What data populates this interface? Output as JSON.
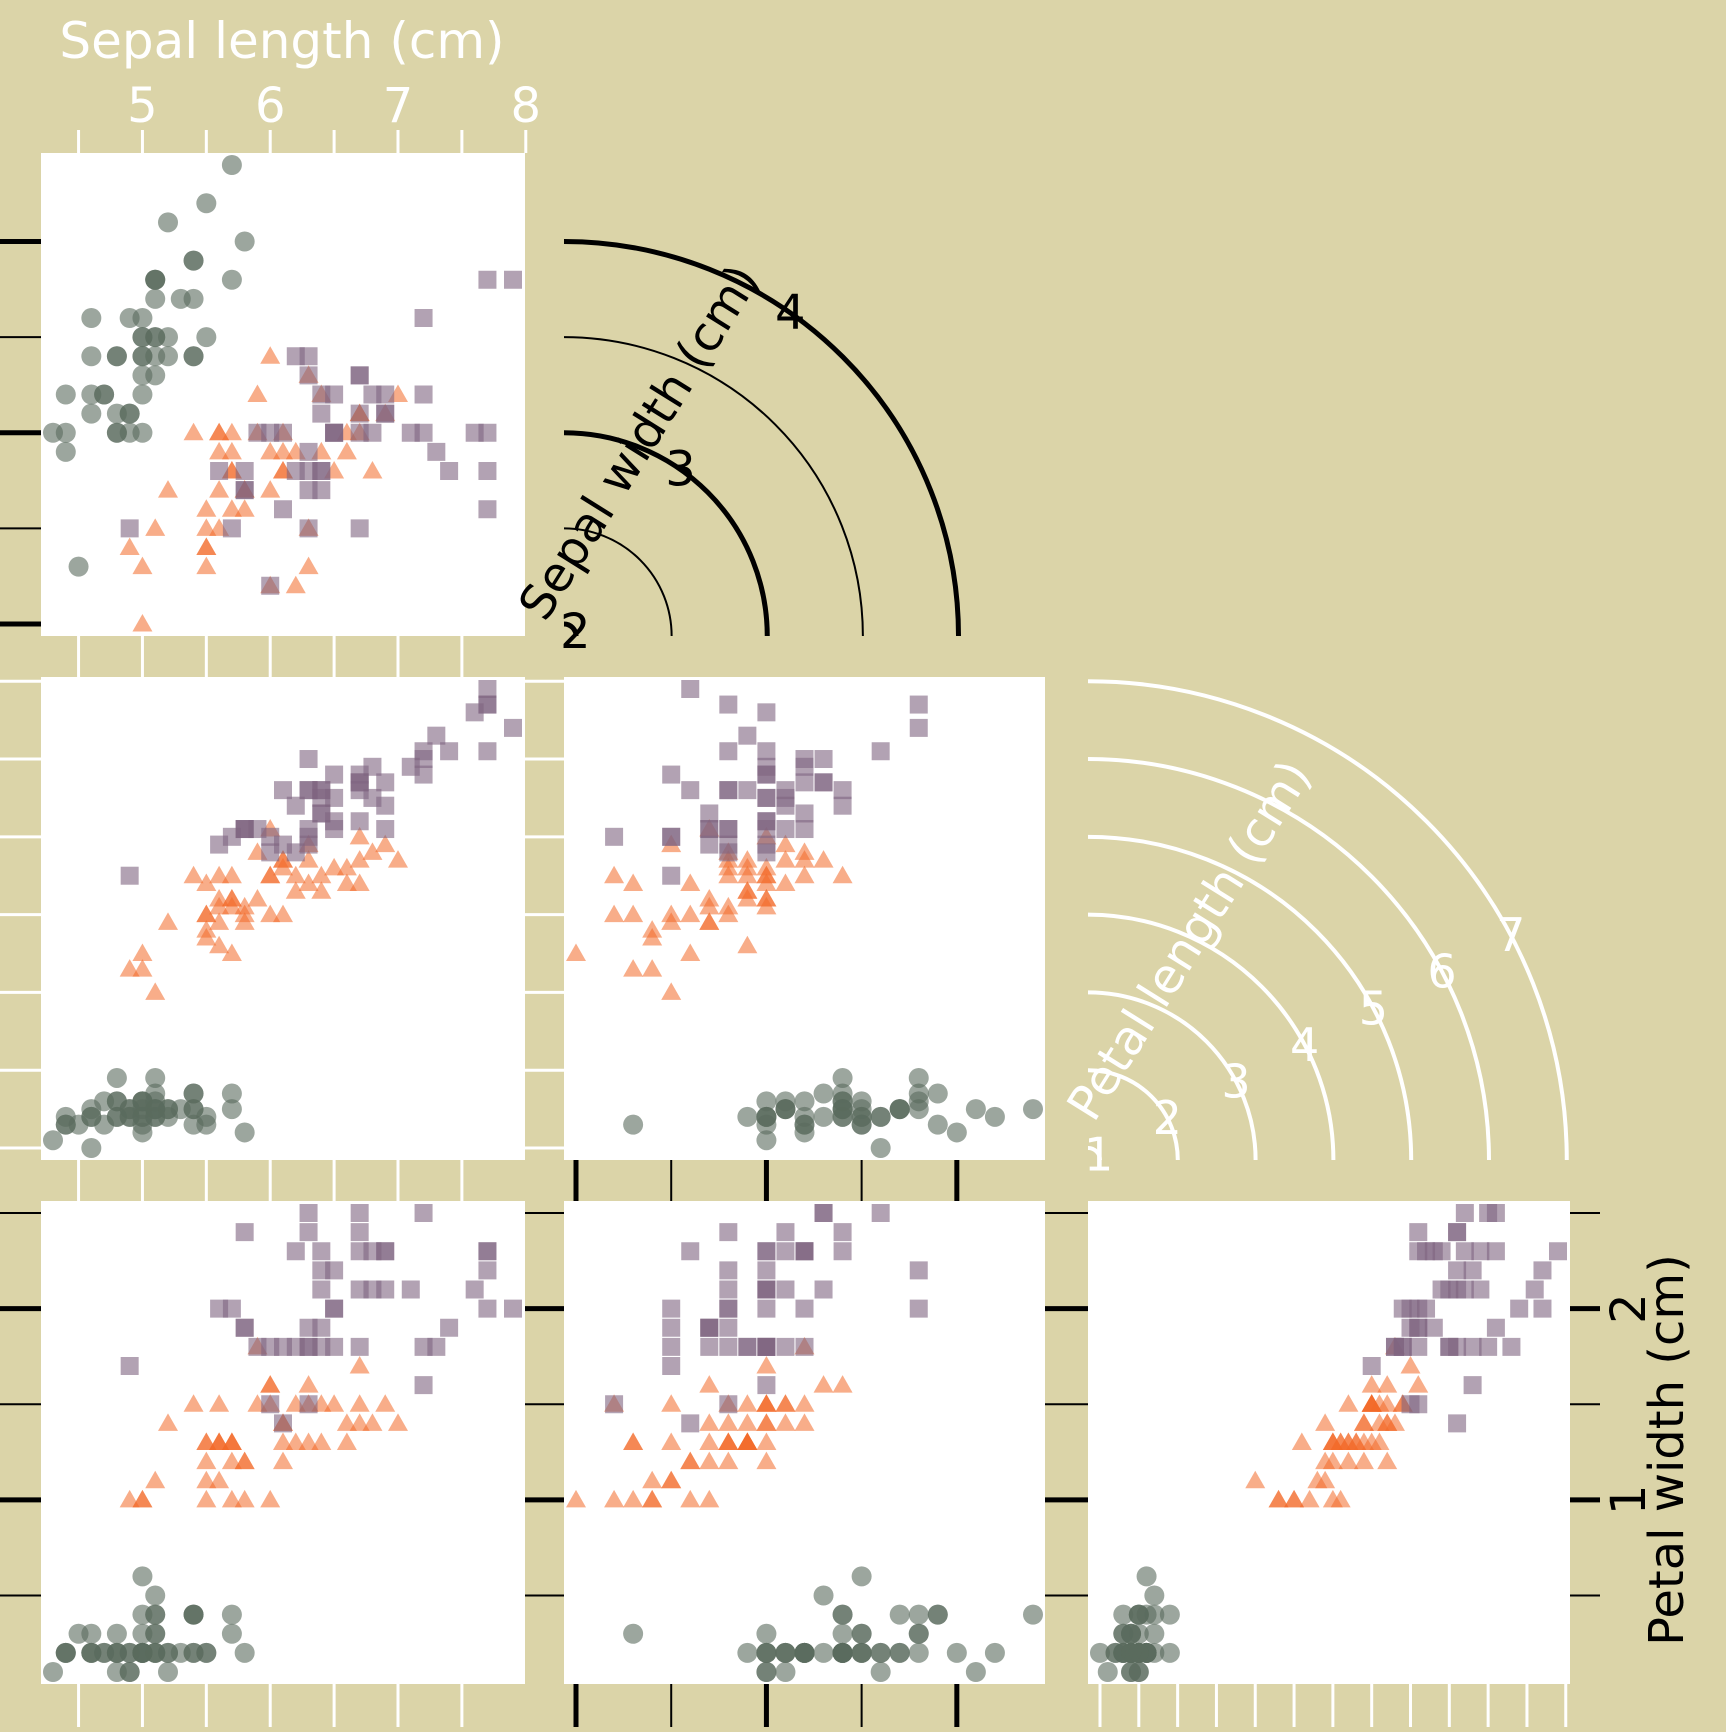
{
  "chart_data": {
    "type": "scatter",
    "variables": [
      {
        "key": "sl",
        "label": "Sepal length (cm)",
        "ticks": [
          "5",
          "6",
          "7",
          "8"
        ]
      },
      {
        "key": "sw",
        "label": "Sepal width (cm)",
        "ticks": [
          "2",
          "3",
          "4"
        ]
      },
      {
        "key": "pl",
        "label": "Petal length (cm)",
        "ticks": [
          "1",
          "2",
          "3",
          "4",
          "5",
          "6",
          "7"
        ]
      },
      {
        "key": "pw",
        "label": "Petal width (cm)",
        "ticks": [
          "1",
          "2"
        ]
      }
    ],
    "ranges": {
      "sl": [
        4.3,
        7.9
      ],
      "sw": [
        2.0,
        4.4
      ],
      "pl": [
        1.0,
        6.9
      ],
      "pw": [
        0.1,
        2.5
      ]
    },
    "panels": [
      {
        "x": "sl",
        "y": "sw"
      },
      {
        "x": "sl",
        "y": "pl"
      },
      {
        "x": "sw",
        "y": "pl"
      },
      {
        "x": "sl",
        "y": "pw"
      },
      {
        "x": "sw",
        "y": "pw"
      },
      {
        "x": "pl",
        "y": "pw"
      }
    ],
    "series": [
      {
        "shape": "circle",
        "color": "#5a6a5e",
        "points": [
          [
            5.1,
            3.5,
            1.4,
            0.2
          ],
          [
            4.9,
            3.0,
            1.4,
            0.2
          ],
          [
            4.7,
            3.2,
            1.3,
            0.2
          ],
          [
            4.6,
            3.1,
            1.5,
            0.2
          ],
          [
            5.0,
            3.6,
            1.4,
            0.2
          ],
          [
            5.4,
            3.9,
            1.7,
            0.4
          ],
          [
            4.6,
            3.4,
            1.4,
            0.3
          ],
          [
            5.0,
            3.4,
            1.5,
            0.2
          ],
          [
            4.4,
            2.9,
            1.4,
            0.2
          ],
          [
            4.9,
            3.1,
            1.5,
            0.1
          ],
          [
            5.4,
            3.7,
            1.5,
            0.2
          ],
          [
            4.8,
            3.4,
            1.6,
            0.2
          ],
          [
            4.8,
            3.0,
            1.4,
            0.1
          ],
          [
            4.3,
            3.0,
            1.1,
            0.1
          ],
          [
            5.8,
            4.0,
            1.2,
            0.2
          ],
          [
            5.7,
            4.4,
            1.5,
            0.4
          ],
          [
            5.4,
            3.9,
            1.3,
            0.4
          ],
          [
            5.1,
            3.5,
            1.4,
            0.3
          ],
          [
            5.7,
            3.8,
            1.7,
            0.3
          ],
          [
            5.1,
            3.8,
            1.5,
            0.3
          ],
          [
            5.4,
            3.4,
            1.7,
            0.2
          ],
          [
            5.1,
            3.7,
            1.5,
            0.4
          ],
          [
            4.6,
            3.6,
            1.0,
            0.2
          ],
          [
            5.1,
            3.3,
            1.7,
            0.5
          ],
          [
            4.8,
            3.4,
            1.9,
            0.2
          ],
          [
            5.0,
            3.0,
            1.6,
            0.2
          ],
          [
            5.0,
            3.4,
            1.6,
            0.4
          ],
          [
            5.2,
            3.5,
            1.5,
            0.2
          ],
          [
            5.2,
            3.4,
            1.4,
            0.2
          ],
          [
            4.7,
            3.2,
            1.6,
            0.2
          ],
          [
            4.8,
            3.1,
            1.6,
            0.2
          ],
          [
            5.4,
            3.4,
            1.5,
            0.4
          ],
          [
            5.2,
            4.1,
            1.5,
            0.1
          ],
          [
            5.5,
            4.2,
            1.4,
            0.2
          ],
          [
            4.9,
            3.1,
            1.5,
            0.2
          ],
          [
            5.0,
            3.2,
            1.2,
            0.2
          ],
          [
            5.5,
            3.5,
            1.3,
            0.2
          ],
          [
            4.9,
            3.6,
            1.4,
            0.1
          ],
          [
            4.4,
            3.0,
            1.3,
            0.2
          ],
          [
            5.1,
            3.4,
            1.5,
            0.2
          ],
          [
            5.0,
            3.5,
            1.3,
            0.3
          ],
          [
            4.5,
            2.3,
            1.3,
            0.3
          ],
          [
            4.4,
            3.2,
            1.3,
            0.2
          ],
          [
            5.0,
            3.5,
            1.6,
            0.6
          ],
          [
            5.1,
            3.8,
            1.9,
            0.4
          ],
          [
            4.8,
            3.0,
            1.4,
            0.3
          ],
          [
            5.1,
            3.8,
            1.6,
            0.2
          ],
          [
            4.6,
            3.2,
            1.4,
            0.2
          ],
          [
            5.3,
            3.7,
            1.5,
            0.2
          ],
          [
            5.0,
            3.3,
            1.4,
            0.2
          ]
        ]
      },
      {
        "shape": "triangle",
        "color": "#f26a28",
        "points": [
          [
            7.0,
            3.2,
            4.7,
            1.4
          ],
          [
            6.4,
            3.2,
            4.5,
            1.5
          ],
          [
            6.9,
            3.1,
            4.9,
            1.5
          ],
          [
            5.5,
            2.3,
            4.0,
            1.3
          ],
          [
            6.5,
            2.8,
            4.6,
            1.5
          ],
          [
            5.7,
            2.8,
            4.5,
            1.3
          ],
          [
            6.3,
            3.3,
            4.7,
            1.6
          ],
          [
            4.9,
            2.4,
            3.3,
            1.0
          ],
          [
            6.6,
            2.9,
            4.6,
            1.3
          ],
          [
            5.2,
            2.7,
            3.9,
            1.4
          ],
          [
            5.0,
            2.0,
            3.5,
            1.0
          ],
          [
            5.9,
            3.0,
            4.2,
            1.5
          ],
          [
            6.0,
            2.2,
            4.0,
            1.0
          ],
          [
            6.1,
            2.9,
            4.7,
            1.4
          ],
          [
            5.6,
            2.9,
            3.6,
            1.3
          ],
          [
            6.7,
            3.1,
            4.4,
            1.4
          ],
          [
            5.6,
            3.0,
            4.5,
            1.5
          ],
          [
            5.8,
            2.7,
            4.1,
            1.0
          ],
          [
            6.2,
            2.2,
            4.5,
            1.5
          ],
          [
            5.6,
            2.5,
            3.9,
            1.1
          ],
          [
            5.9,
            3.2,
            4.8,
            1.8
          ],
          [
            6.1,
            2.8,
            4.0,
            1.3
          ],
          [
            6.3,
            2.5,
            4.9,
            1.5
          ],
          [
            6.1,
            2.8,
            4.7,
            1.2
          ],
          [
            6.4,
            2.9,
            4.3,
            1.3
          ],
          [
            6.6,
            3.0,
            4.4,
            1.4
          ],
          [
            6.8,
            2.8,
            4.8,
            1.4
          ],
          [
            6.7,
            3.0,
            5.0,
            1.7
          ],
          [
            6.0,
            2.9,
            4.5,
            1.5
          ],
          [
            5.7,
            2.6,
            3.5,
            1.0
          ],
          [
            5.5,
            2.4,
            3.8,
            1.1
          ],
          [
            5.5,
            2.4,
            3.7,
            1.0
          ],
          [
            5.8,
            2.7,
            3.9,
            1.2
          ],
          [
            6.0,
            2.7,
            5.1,
            1.6
          ],
          [
            5.4,
            3.0,
            4.5,
            1.5
          ],
          [
            6.0,
            3.4,
            4.5,
            1.6
          ],
          [
            6.7,
            3.1,
            4.7,
            1.5
          ],
          [
            6.3,
            2.3,
            4.4,
            1.3
          ],
          [
            5.6,
            3.0,
            4.1,
            1.3
          ],
          [
            5.5,
            2.5,
            4.0,
            1.3
          ],
          [
            5.5,
            2.6,
            4.4,
            1.2
          ],
          [
            6.1,
            3.0,
            4.6,
            1.4
          ],
          [
            5.8,
            2.6,
            4.0,
            1.2
          ],
          [
            5.0,
            2.3,
            3.3,
            1.0
          ],
          [
            5.6,
            2.7,
            4.2,
            1.3
          ],
          [
            5.7,
            3.0,
            4.2,
            1.2
          ],
          [
            5.7,
            2.9,
            4.2,
            1.3
          ],
          [
            6.2,
            2.9,
            4.3,
            1.3
          ],
          [
            5.1,
            2.5,
            3.0,
            1.1
          ],
          [
            5.7,
            2.8,
            4.1,
            1.3
          ]
        ]
      },
      {
        "shape": "square",
        "color": "#7e6480",
        "points": [
          [
            6.3,
            3.3,
            6.0,
            2.5
          ],
          [
            5.8,
            2.7,
            5.1,
            1.9
          ],
          [
            7.1,
            3.0,
            5.9,
            2.1
          ],
          [
            6.3,
            2.9,
            5.6,
            1.8
          ],
          [
            6.5,
            3.0,
            5.8,
            2.2
          ],
          [
            7.6,
            3.0,
            6.6,
            2.1
          ],
          [
            4.9,
            2.5,
            4.5,
            1.7
          ],
          [
            7.3,
            2.9,
            6.3,
            1.8
          ],
          [
            6.7,
            2.5,
            5.8,
            1.8
          ],
          [
            7.2,
            3.6,
            6.1,
            2.5
          ],
          [
            6.5,
            3.2,
            5.1,
            2.0
          ],
          [
            6.4,
            2.7,
            5.3,
            1.9
          ],
          [
            6.8,
            3.0,
            5.5,
            2.1
          ],
          [
            5.7,
            2.5,
            5.0,
            2.0
          ],
          [
            5.8,
            2.8,
            5.1,
            2.4
          ],
          [
            6.4,
            3.2,
            5.3,
            2.3
          ],
          [
            6.5,
            3.0,
            5.5,
            1.8
          ],
          [
            7.7,
            3.8,
            6.7,
            2.2
          ],
          [
            7.7,
            2.6,
            6.9,
            2.3
          ],
          [
            6.0,
            2.2,
            5.0,
            1.5
          ],
          [
            6.9,
            3.2,
            5.7,
            2.3
          ],
          [
            5.6,
            2.8,
            4.9,
            2.0
          ],
          [
            7.7,
            2.8,
            6.7,
            2.0
          ],
          [
            6.3,
            2.7,
            4.9,
            1.8
          ],
          [
            6.7,
            3.3,
            5.7,
            2.1
          ],
          [
            7.2,
            3.2,
            6.0,
            1.8
          ],
          [
            6.2,
            2.8,
            4.8,
            1.8
          ],
          [
            6.1,
            3.0,
            4.9,
            1.8
          ],
          [
            6.4,
            2.8,
            5.6,
            2.1
          ],
          [
            7.2,
            3.0,
            5.8,
            1.6
          ],
          [
            7.4,
            2.8,
            6.1,
            1.9
          ],
          [
            7.9,
            3.8,
            6.4,
            2.0
          ],
          [
            6.4,
            2.8,
            5.6,
            2.2
          ],
          [
            6.3,
            2.8,
            5.1,
            1.5
          ],
          [
            6.1,
            2.6,
            5.6,
            1.4
          ],
          [
            7.7,
            3.0,
            6.1,
            2.3
          ],
          [
            6.3,
            3.4,
            5.6,
            2.4
          ],
          [
            6.4,
            3.1,
            5.5,
            1.8
          ],
          [
            6.0,
            3.0,
            4.8,
            1.8
          ],
          [
            6.9,
            3.1,
            5.4,
            2.1
          ],
          [
            6.7,
            3.1,
            5.6,
            2.4
          ],
          [
            6.9,
            3.1,
            5.1,
            2.3
          ],
          [
            5.8,
            2.7,
            5.1,
            1.9
          ],
          [
            6.8,
            3.2,
            5.9,
            2.3
          ],
          [
            6.7,
            3.3,
            5.7,
            2.5
          ],
          [
            6.7,
            3.0,
            5.2,
            2.3
          ],
          [
            6.3,
            2.5,
            5.0,
            1.9
          ],
          [
            6.5,
            3.0,
            5.2,
            2.0
          ],
          [
            6.2,
            3.4,
            5.4,
            2.3
          ],
          [
            5.9,
            3.0,
            5.1,
            1.8
          ]
        ]
      }
    ]
  }
}
